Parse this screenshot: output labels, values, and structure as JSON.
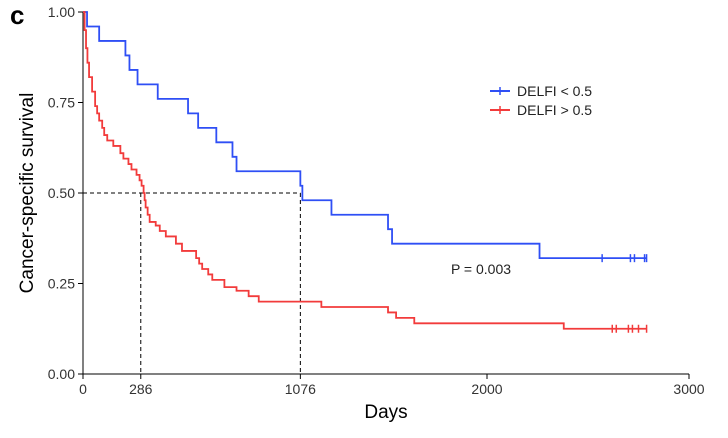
{
  "panel_label": "c",
  "chart_data": {
    "type": "line",
    "subtype": "kaplan-meier",
    "xlabel": "Days",
    "ylabel": "Cancer-specific survival",
    "xlim": [
      0,
      3000
    ],
    "ylim": [
      0,
      1
    ],
    "xticks": [
      0,
      286,
      1076,
      2000,
      3000
    ],
    "xtick_labels": [
      "0",
      "286",
      "1076",
      "2000",
      "3000"
    ],
    "yticks": [
      0,
      0.25,
      0.5,
      0.75,
      1.0
    ],
    "ytick_labels": [
      "0.00",
      "0.25",
      "0.50",
      "0.75",
      "1.00"
    ],
    "annotation": "P = 0.003",
    "annotation_pos": [
      1980,
      0.29
    ],
    "median_lines": [
      {
        "x": 286,
        "y": 0.5
      },
      {
        "x": 1076,
        "y": 0.5
      }
    ],
    "legend_position": "top-right",
    "series": [
      {
        "name": "DELFI < 0.5",
        "color": "#2f4ff5",
        "steps": [
          [
            0,
            1.0
          ],
          [
            20,
            0.96
          ],
          [
            80,
            0.92
          ],
          [
            210,
            0.88
          ],
          [
            230,
            0.84
          ],
          [
            270,
            0.8
          ],
          [
            370,
            0.76
          ],
          [
            520,
            0.72
          ],
          [
            570,
            0.68
          ],
          [
            660,
            0.64
          ],
          [
            740,
            0.6
          ],
          [
            760,
            0.56
          ],
          [
            1076,
            0.52
          ],
          [
            1086,
            0.48
          ],
          [
            1230,
            0.44
          ],
          [
            1510,
            0.4
          ],
          [
            1530,
            0.36
          ],
          [
            2260,
            0.32
          ],
          [
            2790,
            0.32
          ]
        ],
        "censor": [
          2570,
          2710,
          2730,
          2780,
          2790
        ]
      },
      {
        "name": "DELFI > 0.5",
        "color": "#f23b3b",
        "steps": [
          [
            0,
            1.0
          ],
          [
            8,
            0.95
          ],
          [
            15,
            0.9
          ],
          [
            22,
            0.86
          ],
          [
            30,
            0.82
          ],
          [
            45,
            0.78
          ],
          [
            60,
            0.74
          ],
          [
            70,
            0.72
          ],
          [
            80,
            0.7
          ],
          [
            95,
            0.68
          ],
          [
            105,
            0.66
          ],
          [
            120,
            0.645
          ],
          [
            150,
            0.63
          ],
          [
            185,
            0.61
          ],
          [
            200,
            0.595
          ],
          [
            225,
            0.58
          ],
          [
            240,
            0.565
          ],
          [
            265,
            0.55
          ],
          [
            280,
            0.535
          ],
          [
            290,
            0.52
          ],
          [
            300,
            0.5
          ],
          [
            305,
            0.48
          ],
          [
            310,
            0.46
          ],
          [
            320,
            0.44
          ],
          [
            330,
            0.42
          ],
          [
            360,
            0.41
          ],
          [
            380,
            0.395
          ],
          [
            410,
            0.38
          ],
          [
            460,
            0.36
          ],
          [
            490,
            0.34
          ],
          [
            560,
            0.32
          ],
          [
            575,
            0.305
          ],
          [
            590,
            0.29
          ],
          [
            620,
            0.275
          ],
          [
            640,
            0.26
          ],
          [
            700,
            0.24
          ],
          [
            760,
            0.23
          ],
          [
            820,
            0.215
          ],
          [
            870,
            0.2
          ],
          [
            1180,
            0.185
          ],
          [
            1510,
            0.17
          ],
          [
            1550,
            0.155
          ],
          [
            1640,
            0.14
          ],
          [
            2380,
            0.125
          ],
          [
            2790,
            0.125
          ]
        ],
        "censor": [
          2620,
          2640,
          2700,
          2720,
          2750,
          2790
        ]
      }
    ]
  }
}
